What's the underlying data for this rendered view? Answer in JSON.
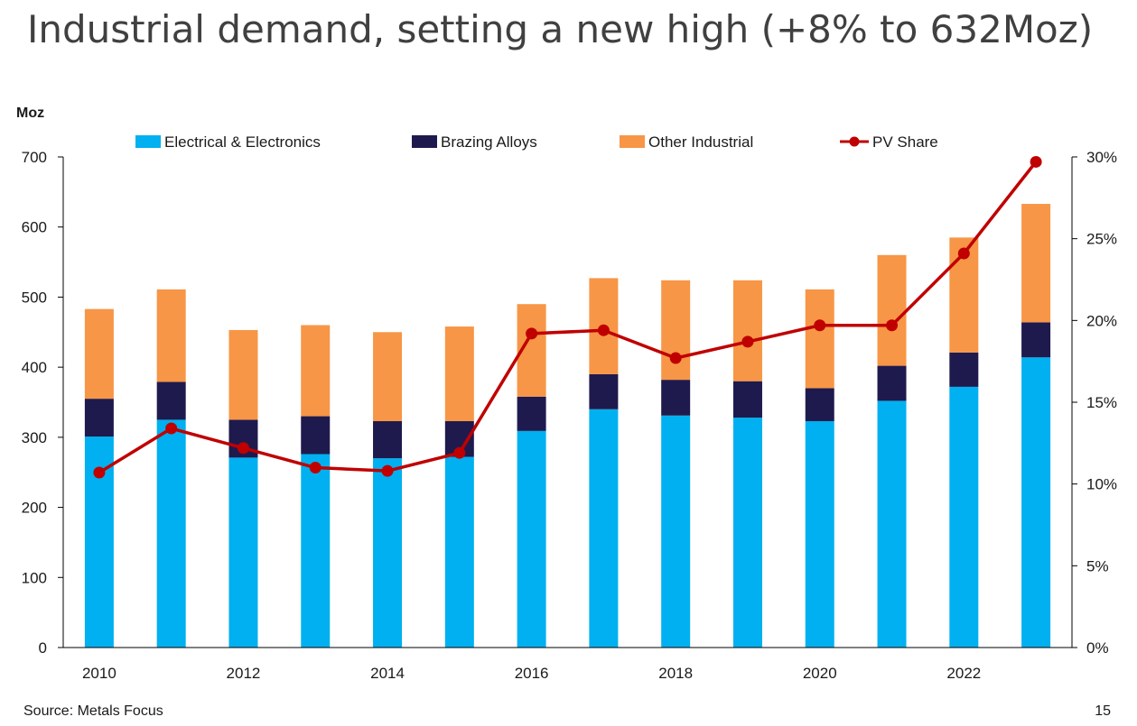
{
  "slide": {
    "title": "Industrial demand, setting a new high (+8% to 632Moz)",
    "source": "Source: Metals Focus",
    "page_number": "15"
  },
  "colors": {
    "electrical": "#00b0f0",
    "brazing": "#1f1a4d",
    "other": "#f79646",
    "pv": "#c00000",
    "axis": "#000000"
  },
  "chart_data": {
    "type": "bar",
    "stacked": true,
    "title": "",
    "ylabel": "Moz",
    "ylim": [
      0,
      700
    ],
    "y_ticks": [
      0,
      100,
      200,
      300,
      400,
      500,
      600,
      700
    ],
    "y2lim": [
      0,
      30
    ],
    "y2_ticks": [
      "0%",
      "5%",
      "10%",
      "15%",
      "20%",
      "25%",
      "30%"
    ],
    "y2_tick_values": [
      0,
      5,
      10,
      15,
      20,
      25,
      30
    ],
    "categories": [
      "2010",
      "2011",
      "2012",
      "2013",
      "2014",
      "2015",
      "2016",
      "2017",
      "2018",
      "2019",
      "2020",
      "2021",
      "2022",
      "2023"
    ],
    "x_tick_labels": [
      "2010",
      "",
      "2012",
      "",
      "2014",
      "",
      "2016",
      "",
      "2018",
      "",
      "2020",
      "",
      "2022",
      ""
    ],
    "series": [
      {
        "name": "Electrical & Electronics",
        "type": "bar",
        "color": "#00b0f0",
        "values": [
          301,
          325,
          271,
          276,
          270,
          272,
          309,
          340,
          331,
          328,
          323,
          352,
          372,
          414
        ]
      },
      {
        "name": "Brazing Alloys",
        "type": "bar",
        "color": "#1f1a4d",
        "values": [
          54,
          54,
          54,
          54,
          53,
          51,
          49,
          50,
          51,
          52,
          47,
          50,
          49,
          50
        ]
      },
      {
        "name": "Other Industrial",
        "type": "bar",
        "color": "#f79646",
        "values": [
          128,
          132,
          128,
          130,
          127,
          135,
          132,
          137,
          142,
          144,
          141,
          158,
          164,
          169
        ]
      },
      {
        "name": "PV Share",
        "type": "line",
        "axis": "right",
        "color": "#c00000",
        "values": [
          10.7,
          13.4,
          12.2,
          11.0,
          10.8,
          11.9,
          19.2,
          19.4,
          17.7,
          18.7,
          19.7,
          19.7,
          24.1,
          29.7
        ]
      }
    ],
    "legend_position": "top",
    "grid": false
  }
}
